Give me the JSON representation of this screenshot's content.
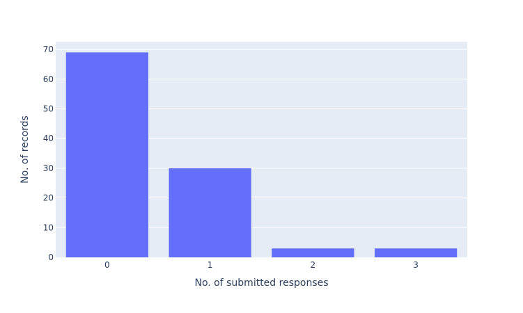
{
  "chart_data": {
    "type": "bar",
    "categories": [
      "0",
      "1",
      "2",
      "3"
    ],
    "values": [
      69,
      30,
      3,
      3
    ],
    "title": "",
    "xlabel": "No. of submitted responses",
    "ylabel": "No. of records",
    "ylim": [
      0,
      72.6
    ],
    "yticks": [
      0,
      10,
      20,
      30,
      40,
      50,
      60,
      70
    ],
    "grid": true,
    "colors": {
      "bar": "#636efa",
      "plot_background": "#e5ecf6",
      "grid": "#ffffff",
      "text": "#2a3f5f"
    }
  }
}
